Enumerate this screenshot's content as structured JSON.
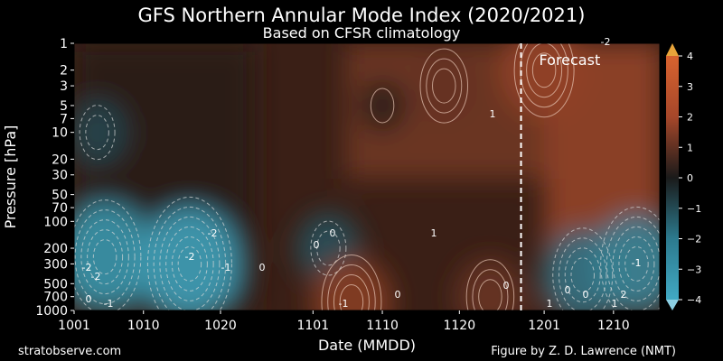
{
  "chart_data": {
    "type": "heatmap",
    "title": "GFS Northern Annular Mode Index (2020/2021)",
    "subtitle": "Based on CFSR climatology",
    "xlabel": "Date (MMDD)",
    "ylabel": "Pressure [hPa]",
    "x_ticks": [
      "1001",
      "1010",
      "1020",
      "1101",
      "1110",
      "1120",
      "1201",
      "1210"
    ],
    "y_ticks": [
      "1",
      "2",
      "3",
      "5",
      "7",
      "10",
      "20",
      "30",
      "50",
      "70",
      "100",
      "200",
      "300",
      "500",
      "700",
      "1000"
    ],
    "y_scale": "log",
    "y_inverted": true,
    "colorbar": {
      "ticks": [
        "4",
        "3",
        "2",
        "1",
        "0",
        "−1",
        "−2",
        "−3",
        "−4"
      ],
      "range": [
        -4,
        4
      ],
      "extend": "both",
      "colors": {
        "positive": "#c2512b",
        "mid": "#1a1a1a",
        "negative": "#3fa1b9",
        "extend_top": "#e8a43a",
        "extend_bottom": "#8ccfe3"
      }
    },
    "forecast_label": "Forecast",
    "forecast_start": "1128",
    "contour_labels": [
      "-2",
      "-2",
      "-2",
      "-1",
      "0",
      "0",
      "0",
      "-1",
      "0",
      "1",
      "1",
      "0",
      "1",
      "0",
      "0",
      "1",
      "2",
      "-1",
      "0",
      "-1",
      "-2",
      "-2"
    ],
    "anomaly_centers": [
      {
        "date": "1005",
        "pressure": 250,
        "value": -3.5
      },
      {
        "date": "1016",
        "pressure": 300,
        "value": -3.8
      },
      {
        "date": "1004",
        "pressure": 10,
        "value": -1.2
      },
      {
        "date": "1103",
        "pressure": 200,
        "value": -1.5
      },
      {
        "date": "1110",
        "pressure": 5,
        "value": 0.5
      },
      {
        "date": "1118",
        "pressure": 3,
        "value": 1.8
      },
      {
        "date": "1106",
        "pressure": 800,
        "value": 2.5
      },
      {
        "date": "1124",
        "pressure": 700,
        "value": 1.8
      },
      {
        "date": "1201",
        "pressure": 2,
        "value": 2.8
      },
      {
        "date": "1206",
        "pressure": 400,
        "value": -2.5
      },
      {
        "date": "1213",
        "pressure": 300,
        "value": -3.0
      }
    ]
  },
  "footer": {
    "left": "stratobserve.com",
    "right": "Figure by Z. D. Lawrence (NMT)"
  }
}
